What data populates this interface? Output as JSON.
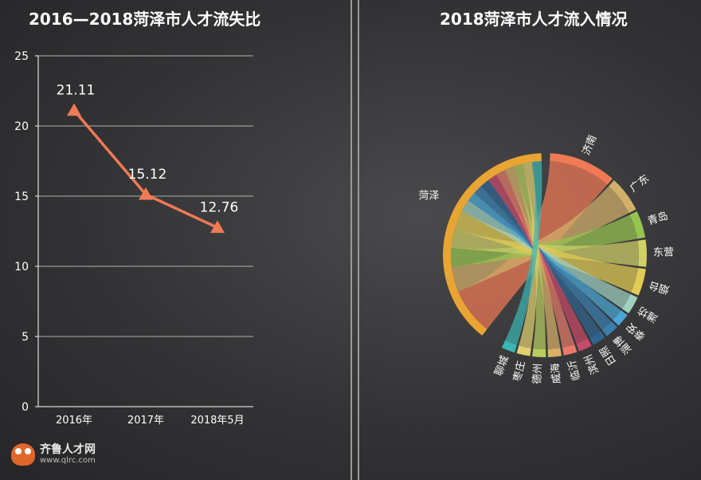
{
  "left_title": "2016—2018菏泽市人才流失比",
  "right_title": "2018菏泽市人才流入情况",
  "logo": {
    "name": "齐鲁人才网",
    "url": "www.qlrc.com"
  },
  "colors": {
    "line": "#f07a55",
    "grid": "#cfcfcf"
  },
  "chart_data": [
    {
      "type": "line",
      "title": "2016—2018菏泽市人才流失比",
      "categories": [
        "2016年",
        "2017年",
        "2018年5月"
      ],
      "values": [
        21.11,
        15.12,
        12.76
      ],
      "data_labels": [
        "21.11",
        "15.12",
        "12.76"
      ],
      "ylim": [
        0,
        25
      ],
      "yticks": [
        "0",
        "5",
        "10",
        "15",
        "20",
        "25"
      ],
      "grid": true,
      "marker": "triangle"
    },
    {
      "type": "chord",
      "title": "2018菏泽市人才流入情况",
      "source": "菏泽",
      "targets": [
        {
          "name": "济南",
          "color": "#f07a55",
          "share": 15
        },
        {
          "name": "广东",
          "color": "#d2b06a",
          "share": 8
        },
        {
          "name": "青岛",
          "color": "#96c450",
          "share": 6
        },
        {
          "name": "东营",
          "color": "#cfd066",
          "share": 6
        },
        {
          "name": "烟台",
          "color": "#e3cc55",
          "share": 6
        },
        {
          "name": "潍坊",
          "color": "#9fd0c0",
          "share": 4
        },
        {
          "name": "泰安",
          "color": "#4aa8d6",
          "share": 3
        },
        {
          "name": "淄博",
          "color": "#3a7fb0",
          "share": 3
        },
        {
          "name": "日照",
          "color": "#2f6490",
          "share": 3
        },
        {
          "name": "滨州",
          "color": "#c84a6a",
          "share": 3
        },
        {
          "name": "临沂",
          "color": "#e87a6a",
          "share": 3
        },
        {
          "name": "威海",
          "color": "#d8b068",
          "share": 3
        },
        {
          "name": "德州",
          "color": "#b8cc60",
          "share": 3
        },
        {
          "name": "枣庄",
          "color": "#e0d070",
          "share": 3
        },
        {
          "name": "聊城",
          "color": "#3ab6b0",
          "share": 3
        }
      ]
    }
  ]
}
